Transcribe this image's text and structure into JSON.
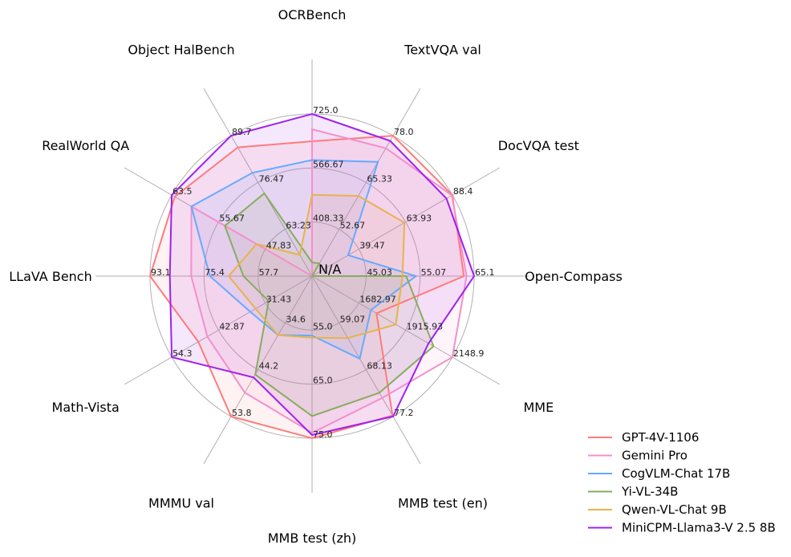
{
  "chart_data": {
    "type": "radar",
    "axes": [
      {
        "label": "OCRBench",
        "min": 250,
        "max": 725,
        "ticks": [
          "408.33",
          "566.67",
          "725.0"
        ]
      },
      {
        "label": "TextVQA val",
        "min": 40,
        "max": 78,
        "ticks": [
          "52.67",
          "65.33",
          "78.0"
        ]
      },
      {
        "label": "DocVQA test",
        "min": 15,
        "max": 88.4,
        "ticks": [
          "39.47",
          "63.93",
          "88.4"
        ]
      },
      {
        "label": "Open-Compass",
        "min": 35,
        "max": 65.1,
        "ticks": [
          "45.03",
          "55.07",
          "65.1"
        ]
      },
      {
        "label": "MME",
        "min": 1450,
        "max": 2148.9,
        "ticks": [
          "1682.97",
          "1915.93",
          "2148.9"
        ]
      },
      {
        "label": "MMB test (en)",
        "min": 50,
        "max": 77.2,
        "ticks": [
          "59.07",
          "68.13",
          "77.2"
        ]
      },
      {
        "label": "MMB test (zh)",
        "min": 45,
        "max": 75,
        "ticks": [
          "55.0",
          "65.0",
          "75.0"
        ]
      },
      {
        "label": "MMMU val",
        "min": 25,
        "max": 53.8,
        "ticks": [
          "34.6",
          "44.2",
          "53.8"
        ]
      },
      {
        "label": "Math-Vista",
        "min": 20,
        "max": 54.3,
        "ticks": [
          "31.43",
          "42.87",
          "54.3"
        ]
      },
      {
        "label": "LLaVA Bench",
        "min": 40,
        "max": 93.1,
        "ticks": [
          "57.7",
          "75.4",
          "93.1"
        ]
      },
      {
        "label": "RealWorld QA",
        "min": 40,
        "max": 63.5,
        "ticks": [
          "47.83",
          "55.67",
          "63.5"
        ]
      },
      {
        "label": "Object HalBench",
        "min": 50,
        "max": 89.7,
        "ticks": [
          "63.23",
          "76.47",
          "89.7"
        ]
      }
    ],
    "center_label": "N/A",
    "series": [
      {
        "name": "GPT-4V-1106",
        "color": "#ff7b7b",
        "values": [
          645,
          78.0,
          88.4,
          63.2,
          1771,
          77.0,
          75.0,
          53.8,
          47.8,
          93.1,
          63.0,
          86.4
        ]
      },
      {
        "name": "Gemini Pro",
        "color": "#f48fcc",
        "values": [
          680,
          74.6,
          88.1,
          63.7,
          2148.9,
          73.6,
          74.0,
          48.9,
          45.6,
          79.6,
          60.2,
          null
        ]
      },
      {
        "name": "CogVLM-Chat 17B",
        "color": "#66aaff",
        "values": [
          590,
          70.9,
          33.9,
          54.3,
          1743,
          66.0,
          56.0,
          37.1,
          35.1,
          73.5,
          60.2,
          79.2
        ]
      },
      {
        "name": "Yi-VL-34B",
        "color": "#86ad5c",
        "values": [
          290,
          43.4,
          null,
          52.5,
          2055,
          72.6,
          70.9,
          45.2,
          30.6,
          62.5,
          54.6,
          73.4
        ]
      },
      {
        "name": "Qwen-VL-Chat 9B",
        "color": "#e6b34e",
        "values": [
          488,
          61.7,
          63.3,
          51.8,
          1867,
          62.0,
          56.4,
          37.1,
          33.8,
          67.3,
          49.3,
          56.0
        ]
      },
      {
        "name": "MiniCPM-Llama3-V 2.5 8B",
        "color": "#a020f0",
        "values": [
          725,
          76.6,
          85.3,
          65.1,
          2030,
          77.2,
          74.4,
          45.8,
          54.3,
          86.6,
          63.5,
          89.7
        ]
      }
    ],
    "legend_position": "bottom-right",
    "grid": true
  }
}
